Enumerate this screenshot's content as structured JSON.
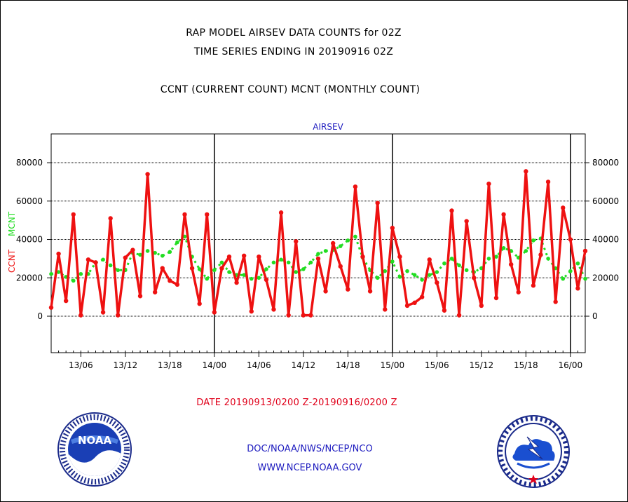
{
  "header": {
    "title_line1": "RAP MODEL AIRSEV DATA COUNTS for 02Z",
    "title_line2": "TIME SERIES ENDING IN 20190916 02Z",
    "title_line3": "CCNT (CURRENT COUNT) MCNT (MONTHLY COUNT)"
  },
  "footer": {
    "date_range": "DATE 20190913/0200 Z-20190916/0200 Z",
    "credit_org": "DOC/NOAA/NWS/NCEP/NCO",
    "credit_url": "WWW.NCEP.NOAA.GOV"
  },
  "logos": {
    "left": "noaa-logo",
    "left_text": "NOAA",
    "right": "national-weather-service-logo"
  },
  "chart_data": {
    "type": "line",
    "title": "AIRSEV",
    "ylabel_left": "CCNT",
    "ylabel_right": "MCNT",
    "ylim": [
      -19000,
      95000
    ],
    "yticks": [
      0,
      20000,
      40000,
      60000,
      80000
    ],
    "ytick_labels": [
      "0",
      "20000",
      "40000",
      "60000",
      "80000"
    ],
    "xlim": [
      0,
      72
    ],
    "xticks": [
      4,
      10,
      16,
      22,
      28,
      34,
      40,
      46,
      52,
      58,
      64,
      70
    ],
    "xtick_labels": [
      "13/06",
      "13/12",
      "13/18",
      "14/00",
      "14/06",
      "14/12",
      "14/18",
      "15/00",
      "15/06",
      "15/12",
      "15/18",
      "16/00"
    ],
    "day_boundaries": [
      22,
      46,
      70
    ],
    "grid": true,
    "series": [
      {
        "name": "CCNT",
        "color": "#ee1111",
        "marker": "dot",
        "values": [
          4500,
          32500,
          8000,
          53000,
          500,
          29500,
          28000,
          2000,
          51000,
          500,
          30500,
          34500,
          10500,
          74000,
          12500,
          25000,
          18500,
          16500,
          53000,
          25000,
          6500,
          53000,
          2000,
          25000,
          31000,
          17500,
          31500,
          2500,
          31000,
          19000,
          3500,
          54000,
          500,
          39000,
          500,
          500,
          30000,
          13000,
          38000,
          26000,
          14000,
          67500,
          31000,
          13000,
          59000,
          3500,
          46000,
          31000,
          5500,
          7000,
          10000,
          29500,
          17500,
          3000,
          55000,
          500,
          49500,
          20000,
          5500,
          69000,
          9500,
          53000,
          27000,
          12500,
          75500,
          16000,
          32000,
          70000,
          7500,
          56500,
          40000,
          14500,
          34000
        ]
      },
      {
        "name": "MCNT",
        "color": "#22dd22",
        "marker": "dot",
        "values": [
          22000,
          23000,
          20500,
          18500,
          22000,
          22000,
          28000,
          29500,
          26500,
          24000,
          24000,
          33000,
          32000,
          34000,
          33000,
          31500,
          33500,
          38500,
          41500,
          31000,
          24500,
          19500,
          24000,
          28000,
          23000,
          21500,
          21500,
          19500,
          20000,
          24500,
          28000,
          29500,
          28000,
          23000,
          24500,
          28000,
          32500,
          34000,
          34500,
          36500,
          39500,
          41500,
          30500,
          24000,
          20000,
          23500,
          28500,
          20500,
          23500,
          21500,
          19000,
          21500,
          23000,
          27500,
          30000,
          26500,
          24000,
          23000,
          25000,
          30000,
          31000,
          35500,
          34000,
          30500,
          34000,
          39500,
          40500,
          30000,
          25000,
          19500,
          23500,
          27500,
          19500
        ]
      }
    ]
  }
}
